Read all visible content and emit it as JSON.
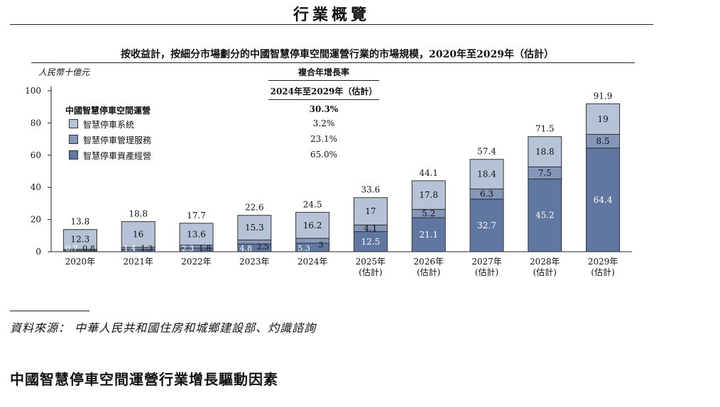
{
  "page_title": "行業概覽",
  "chart_title": "按收益計，按細分市場劃分的中國智慧停車空間運營行業的市場規模，2020年至2029年（估計）",
  "unit_label": "人民幣十億元",
  "cagr": {
    "header": "複合年增長率",
    "period": "2024年至2029年（估計）",
    "total": "30.3%",
    "values": [
      "3.2%",
      "23.1%",
      "65.0%"
    ]
  },
  "legend": {
    "title": "中國智慧停車空間運營",
    "items": [
      "智慧停車系統",
      "智慧停車管理服務",
      "智慧停車資產經營"
    ]
  },
  "colors": {
    "system": "#b6c3d6",
    "management": "#8597b8",
    "asset": "#5f77a1",
    "outline": "#333333"
  },
  "chart_data": {
    "type": "bar",
    "stacked": true,
    "ylim": [
      0,
      100
    ],
    "yticks": [
      0,
      20,
      40,
      60,
      80,
      100
    ],
    "categories": [
      "2020年",
      "2021年",
      "2022年",
      "2023年",
      "2024年",
      "2025年",
      "2026年",
      "2027年",
      "2028年",
      "2029年"
    ],
    "category_sublabels": [
      "",
      "",
      "",
      "",
      "",
      "(估計)",
      "(估計)",
      "(估計)",
      "(估計)",
      "(估計)"
    ],
    "series": [
      {
        "name": "智慧停車資產經營",
        "values": [
          0.7,
          1.4,
          2.3,
          4.8,
          5.3,
          12.5,
          21.1,
          32.7,
          45.2,
          64.4
        ]
      },
      {
        "name": "智慧停車管理服務",
        "values": [
          0.8,
          1.3,
          1.8,
          2.5,
          3.0,
          4.1,
          5.2,
          6.3,
          7.5,
          8.5
        ]
      },
      {
        "name": "智慧停車系統",
        "values": [
          12.3,
          16.0,
          13.6,
          15.3,
          16.2,
          17.0,
          17.8,
          18.4,
          18.8,
          19.0
        ]
      }
    ],
    "totals": [
      13.8,
      18.8,
      17.7,
      22.6,
      24.5,
      33.6,
      44.1,
      57.4,
      71.5,
      91.9
    ]
  },
  "source": "資料來源： 中華人民共和國住房和城鄉建設部、灼識諮詢",
  "section_heading": "中國智慧停車空間運營行業增長驅動因素"
}
